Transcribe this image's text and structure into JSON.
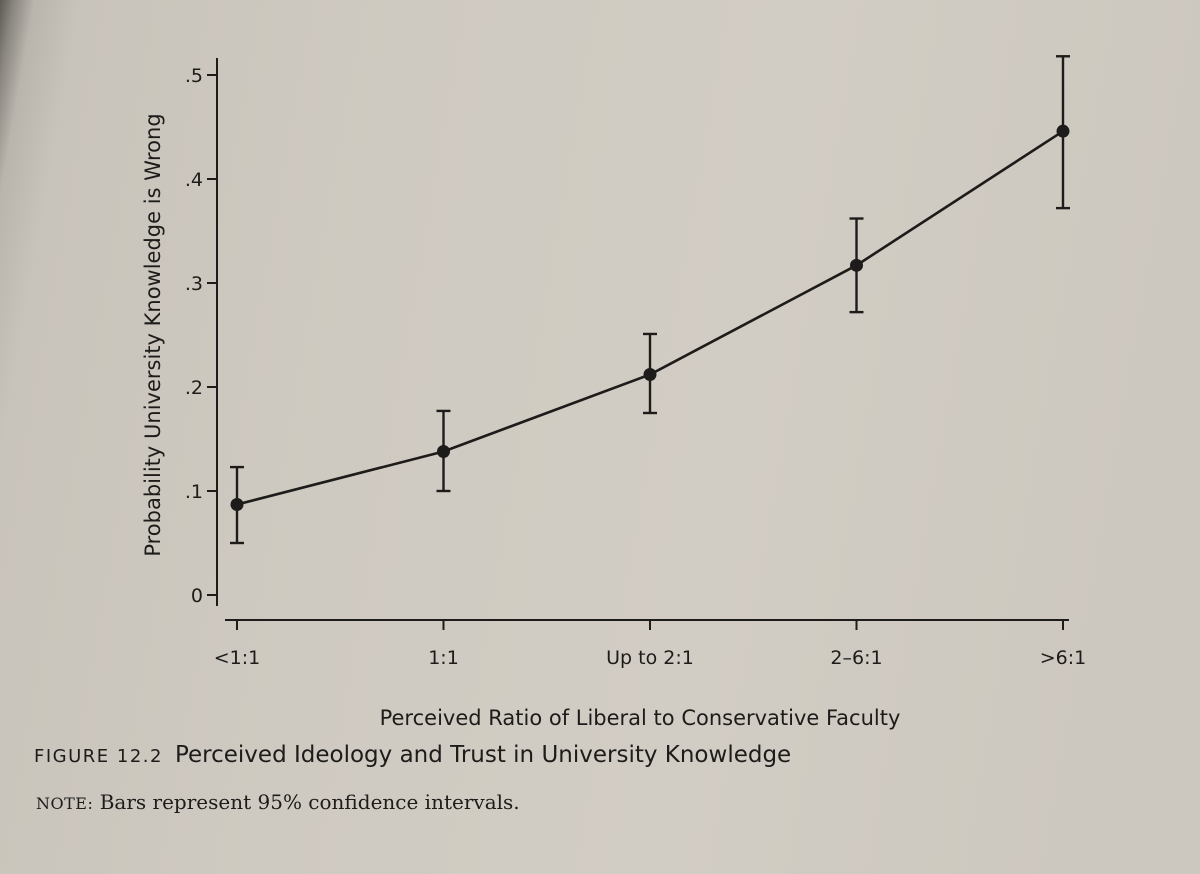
{
  "chart_data": {
    "type": "line",
    "xlabel": "Perceived Ratio of Liberal to Conservative Faculty",
    "ylabel": "Probability University Knowledge is Wrong",
    "categories": [
      "<1:1",
      "1:1",
      "Up to 2:1",
      "2–6:1",
      ">6:1"
    ],
    "values": [
      0.087,
      0.138,
      0.212,
      0.317,
      0.446
    ],
    "ci_low": [
      0.05,
      0.1,
      0.175,
      0.272,
      0.372
    ],
    "ci_high": [
      0.123,
      0.177,
      0.251,
      0.362,
      0.518
    ],
    "yticks": [
      0,
      0.1,
      0.2,
      0.3,
      0.4,
      0.5
    ],
    "ytick_labels": [
      "0",
      ".1",
      ".2",
      ".3",
      ".4",
      ".5"
    ],
    "ylim": [
      0,
      0.5
    ],
    "grid": false
  },
  "caption": {
    "label": "FIGURE 12.2",
    "title": "Perceived Ideology and Trust in University Knowledge"
  },
  "note": {
    "label": "NOTE:",
    "text": "Bars represent 95% confidence intervals."
  }
}
